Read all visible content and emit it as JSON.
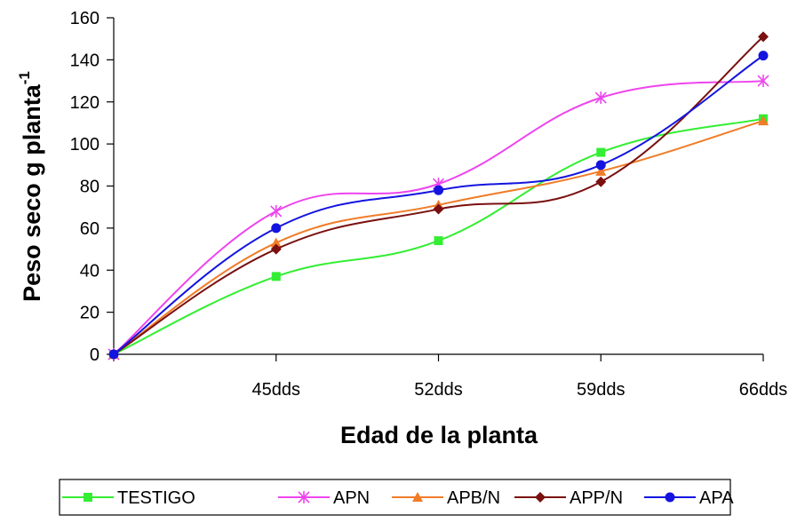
{
  "chart_data": {
    "type": "line",
    "title": "",
    "xlabel": "Edad de la planta",
    "ylabel": "Peso seco  g planta",
    "ylabel_superscript": "-1",
    "categories": [
      "",
      "45dds",
      "52dds",
      "59dds",
      "66dds"
    ],
    "ylim": [
      0,
      160
    ],
    "yticks": [
      0,
      20,
      40,
      60,
      80,
      100,
      120,
      140,
      160
    ],
    "grid": false,
    "legend_position": "bottom",
    "smooth": true,
    "series": [
      {
        "name": "TESTIGO",
        "color": "#33ee33",
        "marker": "square",
        "values": [
          0,
          37,
          54,
          96,
          112
        ]
      },
      {
        "name": "APN",
        "color": "#ee44ee",
        "marker": "star",
        "values": [
          0,
          68,
          81,
          122,
          130
        ]
      },
      {
        "name": "APB/N",
        "color": "#f07c28",
        "marker": "triangle",
        "values": [
          0,
          53,
          71,
          87,
          111
        ]
      },
      {
        "name": "APP/N",
        "color": "#7a1010",
        "marker": "diamond",
        "values": [
          0,
          50,
          69,
          82,
          151
        ]
      },
      {
        "name": "APA",
        "color": "#1414e0",
        "marker": "circle",
        "values": [
          0,
          60,
          78,
          90,
          142
        ]
      }
    ]
  }
}
